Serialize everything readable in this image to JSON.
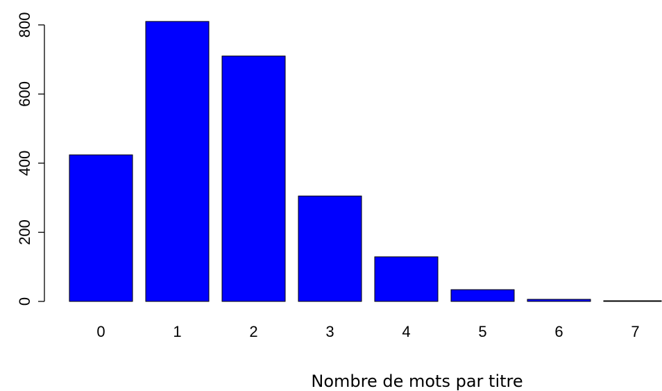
{
  "chart_data": {
    "type": "bar",
    "x_label": "Nombre de mots par titre",
    "categories": [
      "0",
      "1",
      "2",
      "3",
      "4",
      "5",
      "6",
      "7"
    ],
    "values": [
      424,
      810,
      710,
      305,
      129,
      34,
      6,
      2
    ],
    "color": "#0000ff",
    "ylim": [
      0,
      850
    ],
    "yticks": [
      0,
      200,
      400,
      600,
      800
    ]
  }
}
